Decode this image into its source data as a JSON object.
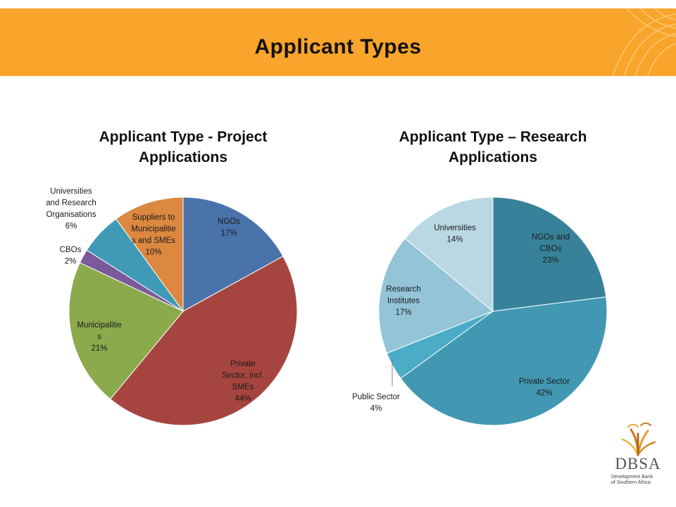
{
  "slide": {
    "title": "Applicant Types"
  },
  "logo": {
    "name": "DBSA",
    "sub_line1": "Development Bank",
    "sub_line2": "of Southern Africa"
  },
  "colors": {
    "banner": "#f9a42a"
  },
  "chart_data": [
    {
      "type": "pie",
      "title_line1": "Applicant Type - Project",
      "title_line2": "Applications",
      "start": "12 o'clock, clockwise",
      "slices": [
        {
          "label": [
            "NGOs",
            "17%"
          ],
          "value": 17,
          "color": "#4a72ab"
        },
        {
          "label": [
            "Private",
            "Sector, incl.",
            "SMEs",
            "44%"
          ],
          "value": 44,
          "color": "#a6453f"
        },
        {
          "label": [
            "Municipalitie",
            "s",
            "21%"
          ],
          "value": 21,
          "color": "#8aaa4b"
        },
        {
          "label": [
            "CBOs",
            "2%"
          ],
          "value": 2,
          "color": "#7a5a9a"
        },
        {
          "label": [
            "Universities",
            "and Research",
            "Organisations",
            "6%"
          ],
          "value": 6,
          "color": "#3e9ab5"
        },
        {
          "label": [
            "Suppliers to",
            "Municipalitie",
            "s and SMEs",
            "10%"
          ],
          "value": 10,
          "color": "#dc8840"
        }
      ]
    },
    {
      "type": "pie",
      "title_line1": "Applicant Type – Research",
      "title_line2": "Applications",
      "start": "12 o'clock, clockwise",
      "slices": [
        {
          "label": [
            "NGOs and",
            "CBOs",
            "23%"
          ],
          "value": 23,
          "color": "#37829a"
        },
        {
          "label": [
            "Private Sector",
            "42%"
          ],
          "value": 42,
          "color": "#4298b2"
        },
        {
          "label": [
            "Public Sector",
            "4%"
          ],
          "value": 4,
          "color": "#4aacc6"
        },
        {
          "label": [
            "Research",
            "Institutes",
            "17%"
          ],
          "value": 17,
          "color": "#93c4d8"
        },
        {
          "label": [
            "Universities",
            "14%"
          ],
          "value": 14,
          "color": "#bad8e4"
        }
      ]
    }
  ]
}
